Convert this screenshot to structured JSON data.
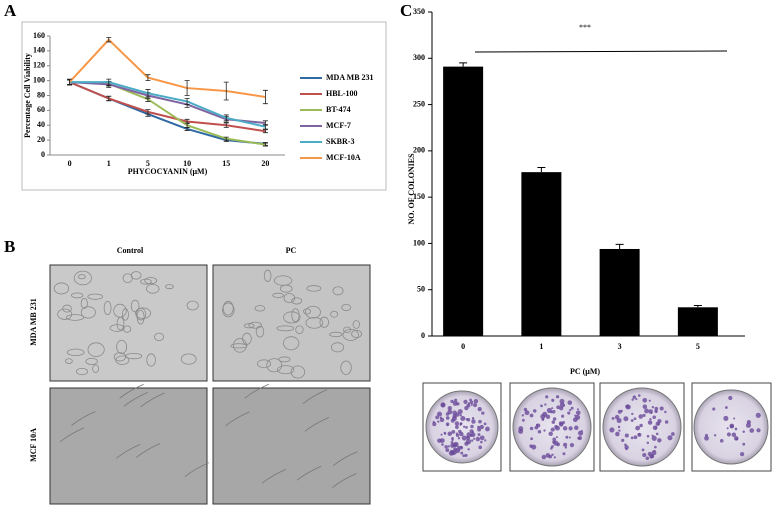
{
  "panels": {
    "a": "A",
    "b": "B",
    "c": "C"
  },
  "chart_data": [
    {
      "type": "line",
      "x_label": "PHYCOCYANIN (μM)",
      "y_label": "Percentage Cell Viability",
      "categories": [
        "0",
        "1",
        "5",
        "10",
        "15",
        "20"
      ],
      "ylim": [
        0,
        160
      ],
      "yticks": [
        0,
        20,
        40,
        60,
        80,
        100,
        120,
        140,
        160
      ],
      "series": [
        {
          "name": "MDA MB 231",
          "color": "#2f6aa3",
          "values": [
            98,
            76,
            55,
            35,
            20,
            15
          ],
          "errors": [
            3,
            3,
            3,
            2,
            2,
            2
          ]
        },
        {
          "name": "HBL-100",
          "color": "#c0504d",
          "values": [
            98,
            76,
            58,
            45,
            40,
            32
          ],
          "errors": [
            3,
            3,
            3,
            3,
            3,
            2
          ]
        },
        {
          "name": "BT-474",
          "color": "#9bbb59",
          "values": [
            98,
            96,
            75,
            40,
            22,
            14
          ],
          "errors": [
            3,
            3,
            3,
            3,
            2,
            2
          ]
        },
        {
          "name": "MCF-7",
          "color": "#8064a2",
          "values": [
            98,
            95,
            80,
            68,
            48,
            43
          ],
          "errors": [
            3,
            4,
            4,
            4,
            4,
            3
          ]
        },
        {
          "name": "SKBR-3",
          "color": "#4bacc6",
          "values": [
            98,
            98,
            83,
            72,
            50,
            38
          ],
          "errors": [
            3,
            4,
            5,
            4,
            4,
            3
          ]
        },
        {
          "name": "MCF-10A",
          "color": "#f79646",
          "values": [
            98,
            155,
            104,
            90,
            86,
            78
          ],
          "errors": [
            4,
            3,
            4,
            10,
            12,
            9
          ]
        }
      ]
    },
    {
      "type": "bar",
      "x_label": "PC (μM)",
      "y_label": "NO. OF COLONIES",
      "annotation": "***",
      "categories": [
        "0",
        "1",
        "3",
        "5"
      ],
      "values": [
        291,
        177,
        94,
        31
      ],
      "errors": [
        4,
        5,
        5,
        2
      ],
      "color": "#000000",
      "ylim": [
        0,
        350
      ],
      "yticks": [
        0,
        50,
        100,
        150,
        200,
        250,
        300,
        350
      ]
    }
  ],
  "micrographs": {
    "columns": [
      "Control",
      "PC"
    ],
    "rows": [
      "MDA MB 231",
      "MCF 10A"
    ]
  }
}
